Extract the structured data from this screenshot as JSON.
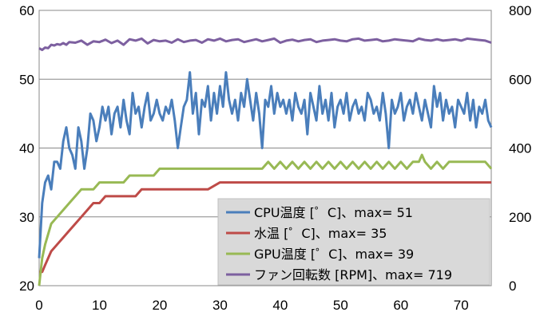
{
  "chart_data": {
    "type": "line",
    "x_ticks": [
      "0",
      "10",
      "20",
      "30",
      "40",
      "50",
      "60",
      "70"
    ],
    "y_left_ticks": [
      "20",
      "30",
      "40",
      "50",
      "60"
    ],
    "y_right_ticks": [
      "0",
      "200",
      "400",
      "600",
      "800"
    ],
    "x_range": [
      0,
      75
    ],
    "y_left_range": [
      20,
      60
    ],
    "y_right_range": [
      0,
      800
    ],
    "grid": "horizontal",
    "legend_position": "bottom-right",
    "series": [
      {
        "name": "CPU温度 [゜C]、max= 51",
        "axis": "left",
        "color": "#4A7EBB",
        "x": [
          0,
          0.5,
          1,
          1.5,
          2,
          2.5,
          3,
          3.5,
          4,
          4.5,
          5,
          5.5,
          6,
          6.5,
          7,
          7.5,
          8,
          8.5,
          9,
          9.5,
          10,
          10.5,
          11,
          11.5,
          12,
          12.5,
          13,
          13.5,
          14,
          14.5,
          15,
          15.5,
          16,
          16.5,
          17,
          17.5,
          18,
          18.5,
          19,
          19.5,
          20,
          20.5,
          21,
          21.5,
          22,
          22.5,
          23,
          23.5,
          24,
          24.5,
          25,
          25.5,
          26,
          26.5,
          27,
          27.5,
          28,
          28.5,
          29,
          29.5,
          30,
          30.5,
          31,
          31.5,
          32,
          32.5,
          33,
          33.5,
          34,
          34.5,
          35,
          35.5,
          36,
          36.5,
          37,
          37.5,
          38,
          38.5,
          39,
          39.5,
          40,
          40.5,
          41,
          41.5,
          42,
          42.5,
          43,
          43.5,
          44,
          44.5,
          45,
          45.5,
          46,
          46.5,
          47,
          47.5,
          48,
          48.5,
          49,
          49.5,
          50,
          50.5,
          51,
          51.5,
          52,
          52.5,
          53,
          53.5,
          54,
          54.5,
          55,
          55.5,
          56,
          56.5,
          57,
          57.5,
          58,
          58.5,
          59,
          59.5,
          60,
          60.5,
          61,
          61.5,
          62,
          62.5,
          63,
          63.5,
          64,
          64.5,
          65,
          65.5,
          66,
          66.5,
          67,
          67.5,
          68,
          68.5,
          69,
          69.5,
          70,
          70.5,
          71,
          71.5,
          72,
          72.5,
          73,
          73.5,
          74,
          74.5,
          75
        ],
        "values": [
          24,
          32,
          35,
          36,
          34,
          38,
          38,
          37,
          41,
          43,
          40,
          39,
          37,
          43,
          41,
          37,
          40,
          45,
          44,
          41,
          43,
          46,
          44,
          46,
          42,
          45,
          46,
          43,
          47,
          44,
          42,
          48,
          45,
          46,
          43,
          46,
          48,
          44,
          45,
          47,
          45,
          44,
          46,
          45,
          47,
          44,
          40,
          43,
          46,
          47,
          51,
          45,
          48,
          42,
          47,
          46,
          49,
          44,
          48,
          45,
          49,
          46,
          51,
          47,
          45,
          47,
          44,
          48,
          46,
          50,
          47,
          44,
          48,
          45,
          40,
          47,
          46,
          49,
          45,
          48,
          46,
          47,
          45,
          47,
          44,
          48,
          46,
          45,
          47,
          42,
          48,
          46,
          44,
          49,
          45,
          47,
          44,
          48,
          43,
          46,
          47,
          45,
          48,
          44,
          46,
          47,
          45,
          46,
          44,
          48,
          47,
          45,
          46,
          44,
          48,
          45,
          40,
          47,
          45,
          46,
          48,
          44,
          46,
          47,
          45,
          48,
          46,
          44,
          47,
          45,
          43,
          49,
          46,
          48,
          44,
          47,
          45,
          46,
          43,
          47,
          46,
          45,
          48,
          44,
          47,
          43,
          46,
          45,
          47,
          44,
          43
        ]
      },
      {
        "name": "水温 [゜C]、max= 35",
        "axis": "left",
        "color": "#BE4B48",
        "x": [
          0,
          0.5,
          1,
          2,
          3,
          4,
          5,
          6,
          7,
          8,
          9,
          10,
          11,
          12,
          13,
          14,
          15,
          16,
          17,
          18,
          19,
          20,
          22,
          24,
          26,
          28,
          30,
          32,
          34,
          36,
          38,
          40,
          45,
          50,
          55,
          60,
          65,
          70,
          75
        ],
        "values": [
          22,
          22,
          23,
          25,
          26,
          27,
          28,
          29,
          30,
          31,
          32,
          32,
          33,
          33,
          33,
          33,
          33,
          33,
          34,
          34,
          34,
          34,
          34,
          34,
          34,
          34,
          35,
          35,
          35,
          35,
          35,
          35,
          35,
          35,
          35,
          35,
          35,
          35,
          35
        ]
      },
      {
        "name": "GPU温度 [゜C]、max= 39",
        "axis": "left",
        "color": "#98B954",
        "x": [
          0,
          0.5,
          1,
          2,
          3,
          4,
          5,
          6,
          7,
          8,
          9,
          10,
          11,
          12,
          13,
          14,
          15,
          16,
          17,
          18,
          19,
          20,
          22,
          24,
          26,
          28,
          30,
          31,
          32,
          33,
          34,
          35,
          36,
          37,
          38,
          39,
          40,
          41,
          42,
          43,
          44,
          45,
          46,
          47,
          48,
          49,
          50,
          51,
          52,
          53,
          54,
          55,
          56,
          57,
          58,
          59,
          60,
          61,
          62,
          63,
          63.5,
          64,
          65,
          66,
          67,
          68,
          69,
          70,
          71,
          72,
          73,
          74,
          75
        ],
        "values": [
          20,
          24,
          26,
          29,
          30,
          31,
          32,
          33,
          34,
          34,
          34,
          35,
          35,
          35,
          35,
          35,
          36,
          36,
          36,
          36,
          36,
          37,
          37,
          37,
          37,
          37,
          37,
          37,
          37,
          37,
          37,
          37,
          37,
          37,
          38,
          37,
          38,
          37,
          38,
          37,
          38,
          37,
          38,
          37,
          38,
          37,
          38,
          37,
          38,
          37,
          38,
          37,
          38,
          37,
          38,
          37,
          38,
          37,
          38,
          38,
          39,
          38,
          37,
          38,
          37,
          38,
          38,
          38,
          38,
          38,
          38,
          38,
          37
        ]
      },
      {
        "name": "ファン回転数 [RPM]、max= 719",
        "axis": "right",
        "color": "#7D60A0",
        "x": [
          0,
          0.5,
          1,
          1.5,
          2,
          2.5,
          3,
          3.5,
          4,
          4.5,
          5,
          6,
          7,
          8,
          9,
          10,
          11,
          12,
          13,
          14,
          15,
          16,
          17,
          18,
          19,
          20,
          21,
          22,
          23,
          24,
          25,
          26,
          27,
          28,
          29,
          30,
          31,
          32,
          33,
          34,
          35,
          36,
          37,
          38,
          39,
          40,
          41,
          42,
          43,
          44,
          45,
          46,
          47,
          48,
          49,
          50,
          51,
          52,
          53,
          54,
          55,
          56,
          57,
          58,
          59,
          60,
          61,
          62,
          63,
          64,
          65,
          66,
          67,
          68,
          69,
          70,
          71,
          72,
          73,
          74,
          75
        ],
        "values": [
          690,
          685,
          692,
          690,
          700,
          698,
          702,
          700,
          705,
          700,
          708,
          706,
          712,
          700,
          710,
          708,
          715,
          705,
          712,
          700,
          716,
          712,
          718,
          704,
          714,
          710,
          712,
          706,
          716,
          708,
          712,
          714,
          706,
          716,
          712,
          718,
          710,
          714,
          716,
          708,
          712,
          716,
          710,
          714,
          718,
          706,
          712,
          715,
          710,
          714,
          716,
          708,
          712,
          714,
          716,
          712,
          710,
          716,
          718,
          712,
          714,
          716,
          710,
          712,
          716,
          714,
          712,
          710,
          718,
          714,
          712,
          716,
          712,
          714,
          716,
          712,
          718,
          716,
          714,
          712,
          706
        ]
      }
    ]
  }
}
